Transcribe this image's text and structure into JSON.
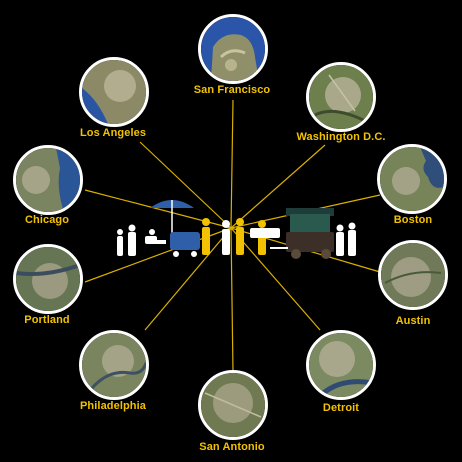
{
  "colors": {
    "background": "#000000",
    "accent": "#f2c200",
    "ring": "#ffffff"
  },
  "center": {
    "icon": "street-vendors-illustration"
  },
  "cities": [
    {
      "id": "san-francisco",
      "label": "San Francisco",
      "map": "map-icon"
    },
    {
      "id": "washington-dc",
      "label": "Washington D.C.",
      "map": "map-icon"
    },
    {
      "id": "boston",
      "label": "Boston",
      "map": "map-icon"
    },
    {
      "id": "austin",
      "label": "Austin",
      "map": "map-icon"
    },
    {
      "id": "detroit",
      "label": "Detroit",
      "map": "map-icon"
    },
    {
      "id": "san-antonio",
      "label": "San Antonio",
      "map": "map-icon"
    },
    {
      "id": "philadelphia",
      "label": "Philadelphia",
      "map": "map-icon"
    },
    {
      "id": "portland",
      "label": "Portland",
      "map": "map-icon"
    },
    {
      "id": "chicago",
      "label": "Chicago",
      "map": "map-icon"
    },
    {
      "id": "los-angeles",
      "label": "Los Angeles",
      "map": "map-icon"
    }
  ]
}
